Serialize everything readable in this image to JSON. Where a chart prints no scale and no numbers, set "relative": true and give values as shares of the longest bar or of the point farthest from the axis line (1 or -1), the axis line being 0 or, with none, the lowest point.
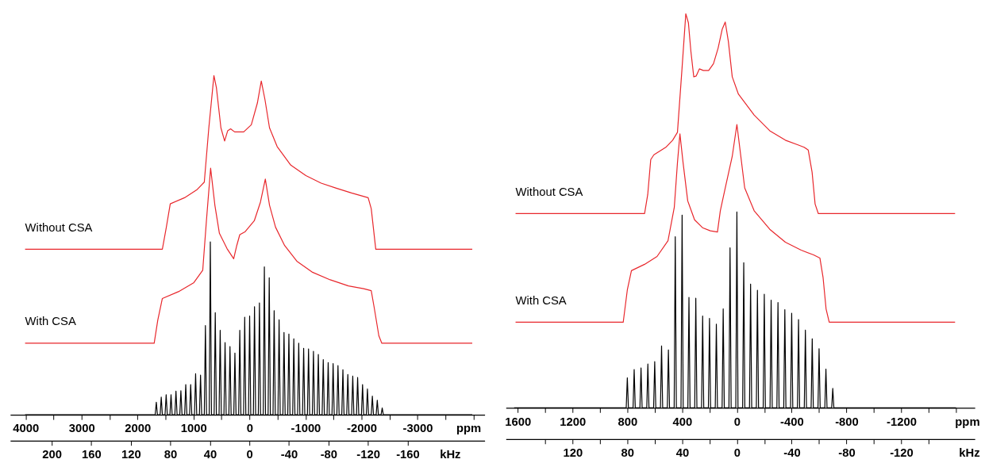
{
  "chart_data": [
    {
      "type": "line",
      "relative": true,
      "xlabel": "ppm",
      "x2label": "kHz",
      "xlim": [
        4275,
        -4200
      ],
      "xticks": [
        4000,
        {
          "value": 3500,
          "label": null
        },
        3000,
        {
          "value": 2500,
          "label": null
        },
        2000,
        {
          "value": 1500,
          "label": null
        },
        1000,
        {
          "value": 500,
          "label": null
        },
        0,
        {
          "value": -500,
          "label": null
        },
        -1000,
        {
          "value": -1500,
          "label": null
        },
        -2000,
        {
          "value": -2500,
          "label": null
        },
        -3000,
        {
          "value": -3500,
          "label": null
        },
        {
          "value": -4000,
          "label": null
        }
      ],
      "x2lim": [
        242,
        -238
      ],
      "x2ticks": [
        200,
        160,
        120,
        80,
        40,
        0,
        -40,
        -80,
        -120,
        -160
      ],
      "series": [
        {
          "name": "Without CSA",
          "color": "#e8262b",
          "x": [
            4009,
            1557,
            1486,
            1416,
            1161,
            944,
            808,
            727,
            636,
            592,
            511,
            445,
            391,
            338,
            266,
            104,
            -32,
            -140,
            -210,
            -276,
            -357,
            -493,
            -737,
            -1007,
            -1279,
            -1550,
            -1821,
            -2119,
            -2174,
            -2255,
            -3979
          ],
          "values": [
            0.488,
            0.488,
            0.553,
            0.622,
            0.64,
            0.663,
            0.686,
            0.846,
            1.0,
            0.965,
            0.846,
            0.807,
            0.837,
            0.843,
            0.834,
            0.834,
            0.855,
            0.919,
            0.984,
            0.929,
            0.846,
            0.791,
            0.736,
            0.705,
            0.683,
            0.668,
            0.654,
            0.64,
            0.608,
            0.488,
            0.488
          ]
        },
        {
          "name": "With CSA",
          "color": "#e8262b",
          "x": [
            4009,
            1703,
            1639,
            1557,
            1270,
            999,
            836,
            770,
            695,
            619,
            538,
            402,
            283,
            228,
            174,
            77,
            -85,
            -195,
            -282,
            -357,
            -465,
            -627,
            -845,
            -1116,
            -1441,
            -1766,
            -2038,
            -2174,
            -2227,
            -2310,
            -2363,
            -3979
          ],
          "values": [
            0.211,
            0.211,
            0.279,
            0.343,
            0.363,
            0.389,
            0.426,
            0.572,
            0.727,
            0.618,
            0.535,
            0.49,
            0.46,
            0.499,
            0.531,
            0.54,
            0.572,
            0.627,
            0.695,
            0.618,
            0.553,
            0.499,
            0.453,
            0.421,
            0.398,
            0.38,
            0.372,
            0.366,
            0.316,
            0.233,
            0.211,
            0.211
          ]
        },
        {
          "color": "#000000",
          "x": [
            4009,
            1685,
            1665,
            1645,
            1597,
            1577,
            1557,
            1509,
            1489,
            1469,
            1422,
            1402,
            1382,
            1334,
            1314,
            1294,
            1246,
            1226,
            1206,
            1159,
            1139,
            1119,
            1071,
            1051,
            1031,
            983,
            963,
            943,
            895,
            875,
            855,
            808,
            788,
            768,
            720,
            700,
            680,
            632,
            612,
            592,
            544,
            524,
            504,
            457,
            437,
            417,
            369,
            349,
            329,
            281,
            261,
            241,
            194,
            174,
            154,
            106,
            86,
            66,
            18,
            -2,
            -22,
            -69,
            -89,
            -109,
            -157,
            -177,
            -197,
            -245,
            -265,
            -285,
            -332,
            -352,
            -372,
            -420,
            -440,
            -460,
            -508,
            -528,
            -548,
            -596,
            -616,
            -636,
            -683,
            -703,
            -723,
            -771,
            -791,
            -811,
            -859,
            -879,
            -899,
            -947,
            -967,
            -987,
            -1034,
            -1054,
            -1074,
            -1122,
            -1142,
            -1162,
            -1209,
            -1229,
            -1249,
            -1297,
            -1317,
            -1337,
            -1385,
            -1405,
            -1425,
            -1473,
            -1493,
            -1513,
            -1560,
            -1580,
            -1600,
            -1648,
            -1668,
            -1688,
            -1736,
            -1756,
            -1776,
            -1824,
            -1844,
            -1864,
            -1911,
            -1931,
            -1951,
            -1999,
            -2019,
            -2039,
            -2086,
            -2106,
            -2126,
            -2174,
            -2194,
            -2214,
            -2262,
            -2282,
            -2302,
            -2350,
            -2370,
            -2390,
            -3979
          ],
          "values": [
            0,
            0,
            0.037,
            0,
            0,
            0.052,
            0,
            0,
            0.059,
            0,
            0,
            0.059,
            0,
            0,
            0.07,
            0,
            0,
            0.071,
            0,
            0,
            0.089,
            0,
            0,
            0.089,
            0,
            0,
            0.121,
            0,
            0,
            0.117,
            0,
            0,
            0.263,
            0,
            0,
            0.51,
            0,
            0,
            0.301,
            0,
            0,
            0.249,
            0,
            0,
            0.213,
            0,
            0,
            0.201,
            0,
            0,
            0.182,
            0,
            0,
            0.249,
            0,
            0,
            0.288,
            0,
            0,
            0.291,
            0,
            0,
            0.319,
            0,
            0,
            0.33,
            0,
            0,
            0.436,
            0,
            0,
            0.404,
            0,
            0,
            0.307,
            0,
            0,
            0.28,
            0,
            0,
            0.243,
            0,
            0,
            0.238,
            0,
            0,
            0.224,
            0,
            0,
            0.211,
            0,
            0,
            0.196,
            0,
            0,
            0.194,
            0,
            0,
            0.187,
            0,
            0,
            0.178,
            0,
            0,
            0.163,
            0,
            0,
            0.154,
            0,
            0,
            0.151,
            0,
            0,
            0.145,
            0,
            0,
            0.133,
            0,
            0,
            0.119,
            0,
            0,
            0.114,
            0,
            0,
            0.11,
            0,
            0,
            0.089,
            0,
            0,
            0.076,
            0,
            0,
            0.055,
            0,
            0,
            0.043,
            0,
            0,
            0.02,
            0,
            0
          ]
        }
      ]
    },
    {
      "type": "line",
      "relative": true,
      "xlabel": "ppm",
      "x2label": "kHz",
      "xlim": [
        1687,
        -1737
      ],
      "xticks": [
        1600,
        {
          "value": 1400,
          "label": null
        },
        1200,
        {
          "value": 1000,
          "label": null
        },
        800,
        {
          "value": 600,
          "label": null
        },
        400,
        {
          "value": 200,
          "label": null
        },
        0,
        {
          "value": -200,
          "label": null
        },
        -400,
        {
          "value": -600,
          "label": null
        },
        -800,
        {
          "value": -1000,
          "label": null
        },
        -1200,
        {
          "value": -1400,
          "label": null
        },
        {
          "value": -1600,
          "label": null
        }
      ],
      "x2lim": [
        168.7,
        -173.7
      ],
      "x2ticks": [
        {
          "value": 140,
          "label": null
        },
        120,
        {
          "value": 100,
          "label": null
        },
        80,
        {
          "value": 60,
          "label": null
        },
        40,
        {
          "value": 20,
          "label": null
        },
        0,
        {
          "value": -20,
          "label": null
        },
        -40,
        {
          "value": -60,
          "label": null
        },
        -80,
        {
          "value": -100,
          "label": null
        },
        -120,
        {
          "value": -140,
          "label": null
        }
      ],
      "series": [
        {
          "name": "Without CSA",
          "color": "#e8262b",
          "x": [
            1616,
            674,
            651,
            629,
            606,
            519,
            469,
            434,
            400,
            373,
            354,
            336,
            315,
            297,
            274,
            245,
            206,
            171,
            137,
            107,
            85,
            62,
            34,
            -11,
            -126,
            -240,
            -354,
            -446,
            -491,
            -521,
            -549,
            -571,
            -594,
            -1593
          ],
          "values": [
            0.493,
            0.493,
            0.541,
            0.63,
            0.642,
            0.661,
            0.679,
            0.699,
            0.864,
            1.0,
            0.977,
            0.905,
            0.84,
            0.842,
            0.86,
            0.856,
            0.856,
            0.873,
            0.913,
            0.961,
            0.979,
            0.929,
            0.84,
            0.796,
            0.743,
            0.703,
            0.679,
            0.667,
            0.661,
            0.654,
            0.598,
            0.517,
            0.493,
            0.493
          ]
        },
        {
          "name": "With CSA",
          "color": "#e8262b",
          "x": [
            1616,
            830,
            800,
            770,
            674,
            583,
            503,
            457,
            434,
            416,
            393,
            359,
            309,
            251,
            194,
            142,
            121,
            80,
            34,
            0,
            -23,
            -57,
            -126,
            -240,
            -354,
            -469,
            -560,
            -606,
            -629,
            -651,
            -674,
            -1593
          ],
          "values": [
            0.217,
            0.217,
            0.299,
            0.348,
            0.364,
            0.384,
            0.424,
            0.509,
            0.622,
            0.695,
            0.622,
            0.525,
            0.477,
            0.457,
            0.449,
            0.446,
            0.5,
            0.566,
            0.638,
            0.719,
            0.654,
            0.558,
            0.5,
            0.453,
            0.42,
            0.4,
            0.388,
            0.38,
            0.331,
            0.251,
            0.217,
            0.217
          ]
        },
        {
          "color": "#000000",
          "x": [
            1626,
            808,
            800,
            792,
            758,
            750,
            742,
            708,
            700,
            692,
            658,
            650,
            642,
            608,
            600,
            592,
            558,
            550,
            542,
            508,
            500,
            492,
            458,
            450,
            442,
            408,
            400,
            392,
            358,
            350,
            342,
            308,
            300,
            292,
            258,
            250,
            242,
            208,
            200,
            192,
            158,
            150,
            142,
            108,
            100,
            92,
            58,
            50,
            42,
            8,
            0,
            -8,
            -42,
            -50,
            -58,
            -92,
            -100,
            -108,
            -142,
            -150,
            -158,
            -192,
            -200,
            -208,
            -242,
            -250,
            -258,
            -292,
            -300,
            -308,
            -342,
            -350,
            -358,
            -392,
            -400,
            -408,
            -442,
            -450,
            -458,
            -492,
            -500,
            -508,
            -542,
            -550,
            -558,
            -592,
            -600,
            -608,
            -642,
            -650,
            -658,
            -692,
            -700,
            -708,
            -1600
          ],
          "values": [
            0,
            0,
            0.076,
            0,
            0,
            0.097,
            0,
            0,
            0.101,
            0,
            0,
            0.111,
            0,
            0,
            0.117,
            0,
            0,
            0.157,
            0,
            0,
            0.147,
            0,
            0,
            0.434,
            0,
            0,
            0.489,
            0,
            0,
            0.28,
            0,
            0,
            0.278,
            0,
            0,
            0.233,
            0,
            0,
            0.227,
            0,
            0,
            0.212,
            0,
            0,
            0.251,
            0,
            0,
            0.406,
            0,
            0,
            0.497,
            0,
            0,
            0.368,
            0,
            0,
            0.314,
            0,
            0,
            0.298,
            0,
            0,
            0.288,
            0,
            0,
            0.273,
            0,
            0,
            0.267,
            0,
            0,
            0.249,
            0,
            0,
            0.24,
            0,
            0,
            0.224,
            0,
            0,
            0.197,
            0,
            0,
            0.175,
            0,
            0,
            0.15,
            0,
            0,
            0.098,
            0,
            0,
            0.049,
            0,
            0
          ]
        }
      ]
    }
  ]
}
